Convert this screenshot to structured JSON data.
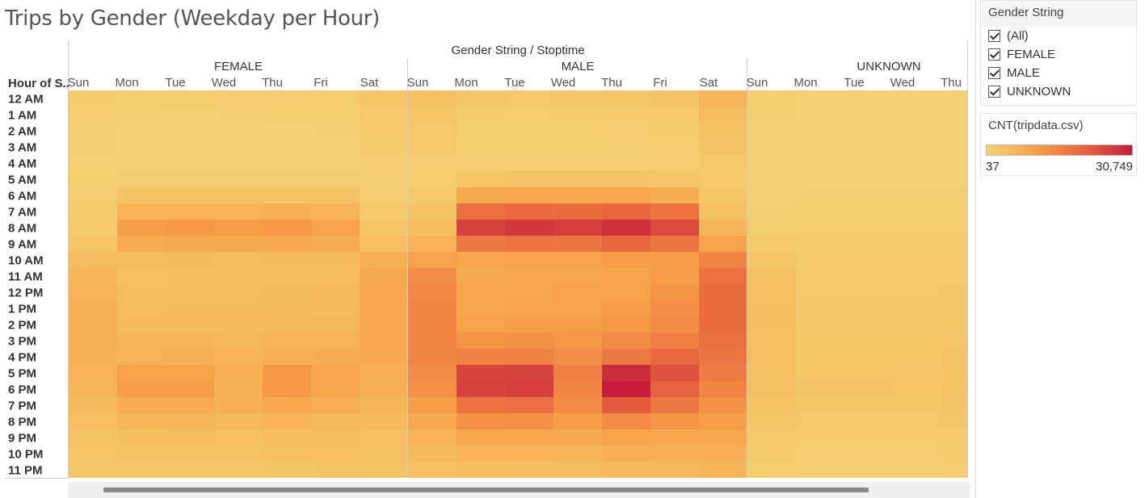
{
  "title": "Trips by Gender (Weekday per Hour)",
  "chart_data": {
    "type": "heatmap",
    "title": "Trips by Gender (Weekday per Hour)",
    "column_header": "Gender String  /  Stoptime",
    "row_header": "Hour of S..",
    "groups": [
      "FEMALE",
      "MALE",
      "UNKNOWN"
    ],
    "days": [
      "Sun",
      "Mon",
      "Tue",
      "Wed",
      "Thu",
      "Fri",
      "Sat"
    ],
    "visible_columns": [
      {
        "group": 0,
        "day": "Sun"
      },
      {
        "group": 0,
        "day": "Mon"
      },
      {
        "group": 0,
        "day": "Tue"
      },
      {
        "group": 0,
        "day": "Wed"
      },
      {
        "group": 0,
        "day": "Thu"
      },
      {
        "group": 0,
        "day": "Fri"
      },
      {
        "group": 0,
        "day": "Sat"
      },
      {
        "group": 1,
        "day": "Sun"
      },
      {
        "group": 1,
        "day": "Mon"
      },
      {
        "group": 1,
        "day": "Tue"
      },
      {
        "group": 1,
        "day": "Wed"
      },
      {
        "group": 1,
        "day": "Thu"
      },
      {
        "group": 1,
        "day": "Fri"
      },
      {
        "group": 1,
        "day": "Sat"
      },
      {
        "group": 2,
        "day": "Sun"
      },
      {
        "group": 2,
        "day": "Mon"
      },
      {
        "group": 2,
        "day": "Tue"
      },
      {
        "group": 2,
        "day": "Wed"
      },
      {
        "group": 2,
        "day": "Thu"
      }
    ],
    "hours": [
      "12 AM",
      "1 AM",
      "2 AM",
      "3 AM",
      "4 AM",
      "5 AM",
      "6 AM",
      "7 AM",
      "8 AM",
      "9 AM",
      "10 AM",
      "11 AM",
      "12 PM",
      "1 PM",
      "2 PM",
      "3 PM",
      "4 PM",
      "5 PM",
      "6 PM",
      "7 PM",
      "8 PM",
      "9 PM",
      "10 PM",
      "11 PM"
    ],
    "values": {
      "FEMALE": [
        [
          1200,
          700,
          700,
          800,
          900,
          1000,
          2500
        ],
        [
          800,
          400,
          350,
          400,
          450,
          550,
          1900
        ],
        [
          600,
          250,
          250,
          280,
          300,
          380,
          1500
        ],
        [
          400,
          200,
          180,
          200,
          220,
          280,
          1100
        ],
        [
          300,
          200,
          180,
          200,
          220,
          250,
          800
        ],
        [
          500,
          600,
          600,
          600,
          650,
          650,
          600
        ],
        [
          800,
          2800,
          3000,
          3000,
          2900,
          2800,
          900
        ],
        [
          1200,
          6500,
          6800,
          6600,
          6900,
          6300,
          1500
        ],
        [
          1700,
          11000,
          11500,
          11000,
          12000,
          10500,
          2500
        ],
        [
          2500,
          8000,
          8500,
          8300,
          8800,
          8000,
          4000
        ],
        [
          4500,
          4500,
          4800,
          4500,
          4900,
          4700,
          7000
        ],
        [
          6000,
          4000,
          4200,
          4200,
          4400,
          4500,
          8500
        ],
        [
          6500,
          4500,
          4500,
          4600,
          4800,
          5000,
          9000
        ],
        [
          7000,
          4500,
          4700,
          4800,
          5000,
          5300,
          9000
        ],
        [
          7000,
          5000,
          5100,
          5200,
          5300,
          5600,
          9000
        ],
        [
          7000,
          6000,
          6100,
          5800,
          6600,
          6800,
          9000
        ],
        [
          7000,
          6800,
          7000,
          6500,
          7500,
          7800,
          8500
        ],
        [
          6500,
          10500,
          10500,
          7500,
          11500,
          9500,
          7500
        ],
        [
          6000,
          11000,
          11000,
          7000,
          12000,
          9500,
          7000
        ],
        [
          5000,
          8000,
          8200,
          7000,
          9000,
          7500,
          6000
        ],
        [
          4000,
          6000,
          6200,
          5000,
          6500,
          5500,
          5000
        ],
        [
          3000,
          4200,
          4300,
          3800,
          4500,
          4500,
          4000
        ],
        [
          2500,
          3000,
          3000,
          3000,
          3300,
          3800,
          3500
        ],
        [
          2000,
          2000,
          2000,
          2000,
          2200,
          2800,
          3000
        ]
      ],
      "MALE": [
        [
          3500,
          2000,
          1800,
          2000,
          2200,
          2600,
          6000
        ],
        [
          2500,
          1200,
          1000,
          1200,
          1300,
          1700,
          4500
        ],
        [
          1800,
          700,
          700,
          700,
          800,
          1100,
          3500
        ],
        [
          1300,
          500,
          500,
          500,
          600,
          800,
          2600
        ],
        [
          900,
          800,
          800,
          800,
          900,
          900,
          1700
        ],
        [
          1000,
          2500,
          2600,
          2600,
          2600,
          2400,
          1300
        ],
        [
          1800,
          8500,
          8800,
          8700,
          9200,
          8200,
          2200
        ],
        [
          3000,
          18500,
          19500,
          19000,
          20000,
          18000,
          3500
        ],
        [
          4500,
          25500,
          27000,
          26000,
          28000,
          24500,
          6000
        ],
        [
          6500,
          17000,
          18000,
          17500,
          20000,
          17500,
          10000
        ],
        [
          10500,
          9500,
          10000,
          10000,
          10800,
          11000,
          15000
        ],
        [
          13500,
          8500,
          9000,
          9000,
          9800,
          11000,
          18000
        ],
        [
          14500,
          9500,
          9500,
          10000,
          10500,
          12500,
          19000
        ],
        [
          15000,
          9500,
          9800,
          10000,
          11000,
          13500,
          19000
        ],
        [
          15000,
          10500,
          10800,
          11000,
          11500,
          14000,
          19000
        ],
        [
          15000,
          12500,
          12800,
          12000,
          14000,
          16000,
          18500
        ],
        [
          15000,
          15500,
          15800,
          13500,
          17000,
          19500,
          17500
        ],
        [
          14000,
          25000,
          25500,
          16000,
          28500,
          23000,
          16500
        ],
        [
          13000,
          25500,
          26000,
          15000,
          30749,
          21000,
          15000
        ],
        [
          11000,
          18000,
          18500,
          14000,
          22000,
          17000,
          13000
        ],
        [
          8500,
          13000,
          13200,
          11000,
          14000,
          12500,
          11000
        ],
        [
          6500,
          9000,
          9000,
          8500,
          9800,
          9000,
          9000
        ],
        [
          5000,
          6500,
          6500,
          6200,
          7200,
          7000,
          7500
        ],
        [
          4000,
          4500,
          4400,
          4300,
          5000,
          5500,
          6500
        ]
      ],
      "UNKNOWN": [
        [
          500,
          200,
          200,
          200,
          250
        ],
        [
          400,
          150,
          150,
          150,
          150
        ],
        [
          300,
          100,
          100,
          100,
          100
        ],
        [
          200,
          80,
          80,
          80,
          80
        ],
        [
          150,
          60,
          60,
          60,
          60
        ],
        [
          100,
          100,
          100,
          100,
          100
        ],
        [
          200,
          400,
          400,
          400,
          400
        ],
        [
          400,
          700,
          700,
          700,
          700
        ],
        [
          700,
          1000,
          1000,
          1000,
          1000
        ],
        [
          1500,
          1200,
          1200,
          1200,
          1200
        ],
        [
          2500,
          1500,
          1500,
          1500,
          1600
        ],
        [
          3500,
          1700,
          1700,
          1700,
          1800
        ],
        [
          4000,
          1900,
          1900,
          1900,
          2000
        ],
        [
          4200,
          2000,
          2000,
          2000,
          2100
        ],
        [
          4200,
          2100,
          2100,
          2100,
          2200
        ],
        [
          4000,
          2200,
          2200,
          2200,
          2400
        ],
        [
          3800,
          2300,
          2300,
          2300,
          2600
        ],
        [
          3500,
          2500,
          2500,
          2400,
          2900
        ],
        [
          3200,
          2600,
          2600,
          2500,
          3000
        ],
        [
          2800,
          2300,
          2300,
          2200,
          2600
        ],
        [
          2200,
          1800,
          1800,
          1800,
          2000
        ],
        [
          1700,
          1300,
          1300,
          1300,
          1500
        ],
        [
          1300,
          900,
          900,
          900,
          1100
        ],
        [
          1000,
          600,
          600,
          600,
          800
        ]
      ]
    },
    "color_scale": {
      "min": 37,
      "max": 30749,
      "colors": [
        "#f3d172",
        "#f7a249",
        "#e8643f",
        "#c41e3a"
      ]
    }
  },
  "filter": {
    "title": "Gender String",
    "items": [
      "(All)",
      "FEMALE",
      "MALE",
      "UNKNOWN"
    ]
  },
  "legend": {
    "title": "CNT(tripdata.csv)",
    "min_label": "37",
    "max_label": "30,749"
  }
}
